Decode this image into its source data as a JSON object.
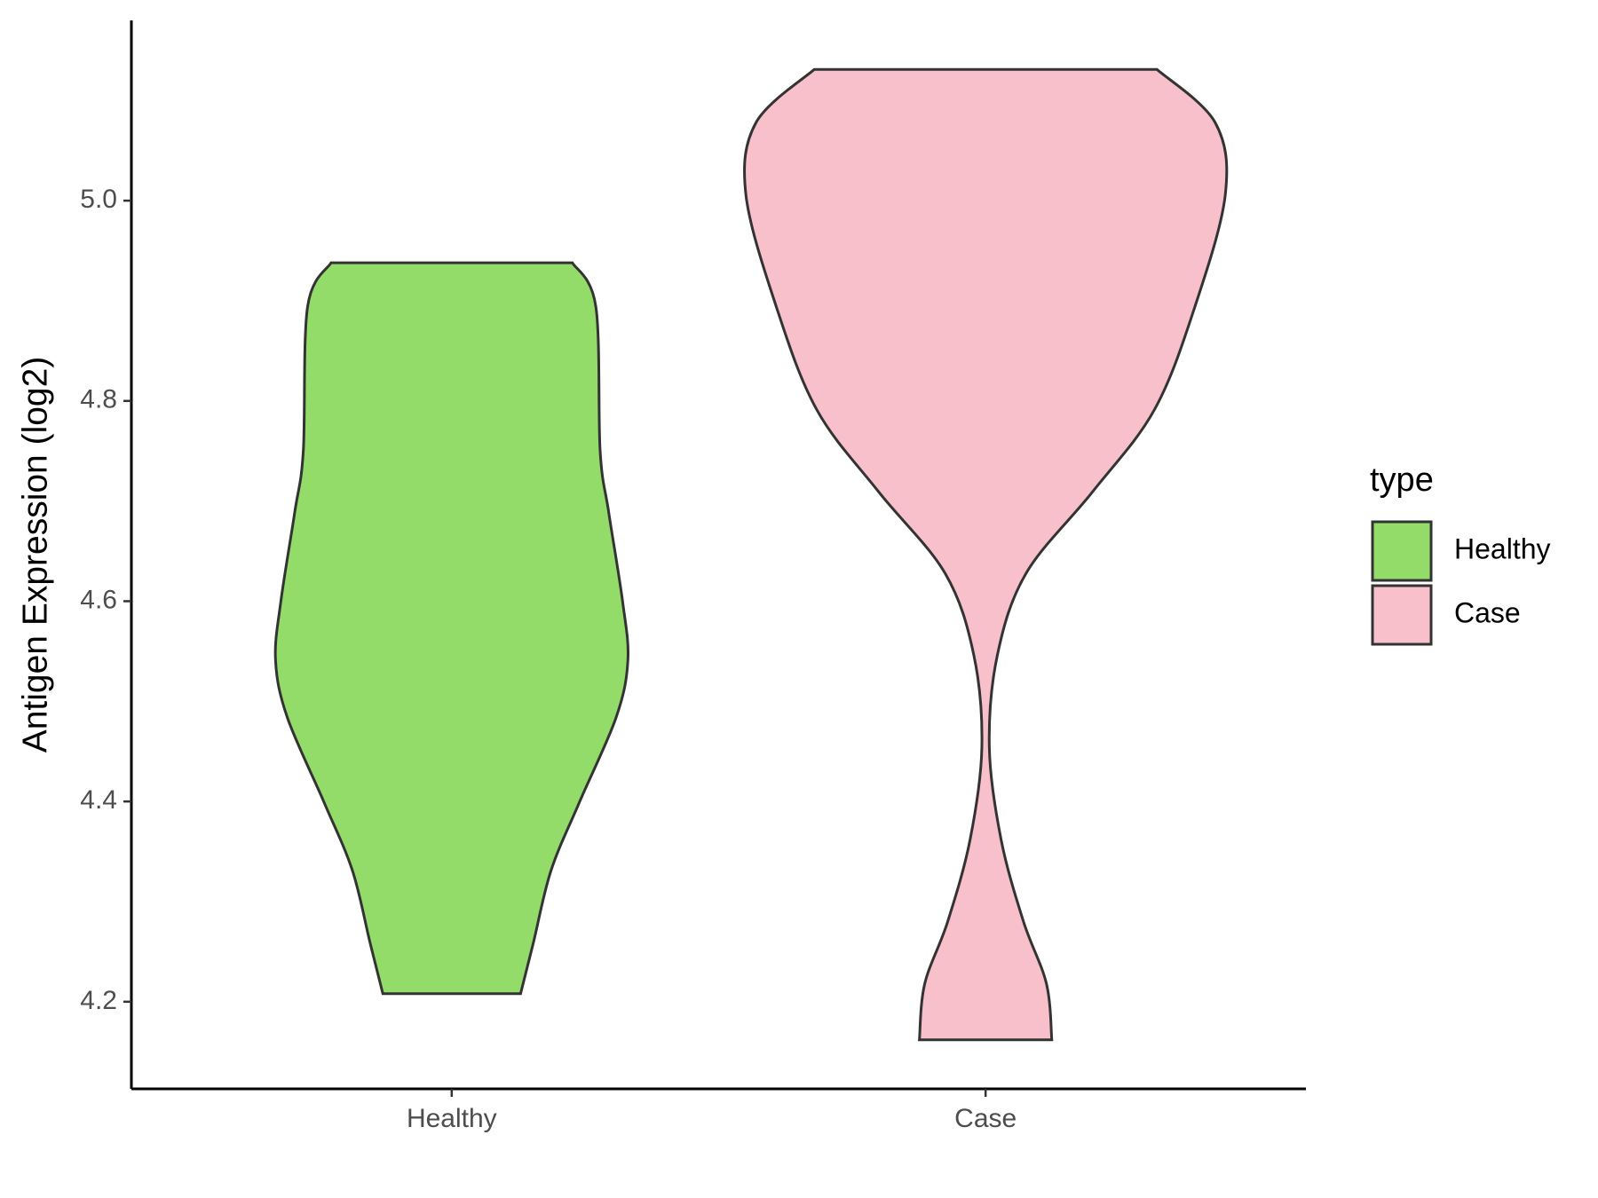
{
  "chart_data": {
    "type": "violin",
    "y_label": "Antigen Expression (log2)",
    "categories": [
      "Healthy",
      "Case"
    ],
    "legend_title": "type",
    "series": [
      {
        "name": "Healthy",
        "color": "#93dc6a",
        "y": [
          4.938,
          4.894,
          4.75,
          4.689,
          4.6,
          4.541,
          4.484,
          4.399,
          4.331,
          4.259,
          4.208
        ],
        "width": [
          0.226,
          0.27,
          0.278,
          0.294,
          0.32,
          0.33,
          0.308,
          0.239,
          0.186,
          0.153,
          0.129
        ]
      },
      {
        "name": "Case",
        "color": "#f7c0cb",
        "y": [
          5.131,
          5.078,
          5.006,
          4.894,
          4.791,
          4.709,
          4.628,
          4.546,
          4.454,
          4.362,
          4.28,
          4.218,
          4.162
        ],
        "width": [
          0.321,
          0.43,
          0.449,
          0.392,
          0.316,
          0.2,
          0.076,
          0.022,
          0.007,
          0.029,
          0.071,
          0.114,
          0.124
        ]
      }
    ],
    "ylim": [
      4.113,
      5.18
    ],
    "yticks": [
      {
        "value": 4.2,
        "label": "4.2"
      },
      {
        "value": 4.4,
        "label": "4.4"
      },
      {
        "value": 4.6,
        "label": "4.6"
      },
      {
        "value": 4.8,
        "label": "4.8"
      },
      {
        "value": 5,
        "label": "5.0"
      }
    ],
    "xlim": [
      0.4,
      2.6
    ]
  }
}
